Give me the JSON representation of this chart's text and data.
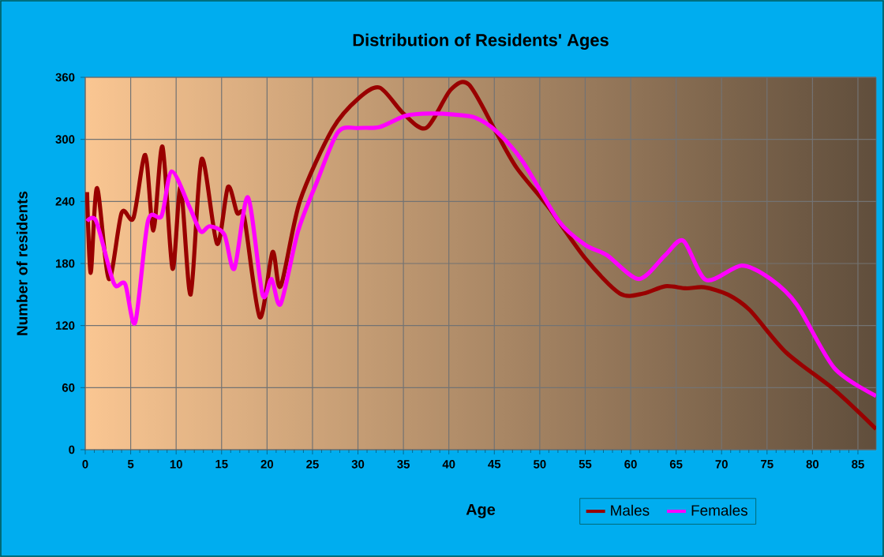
{
  "chart_data": {
    "type": "line",
    "title": "Distribution of Residents' Ages",
    "xlabel": "Age",
    "ylabel": "Number of residents",
    "xlim": [
      0,
      87
    ],
    "ylim": [
      0,
      360
    ],
    "xticks": [
      0,
      5,
      10,
      15,
      20,
      25,
      30,
      35,
      40,
      45,
      50,
      55,
      60,
      65,
      70,
      75,
      80,
      85
    ],
    "yticks": [
      0,
      60,
      120,
      180,
      240,
      300,
      360
    ],
    "grid": true,
    "legend": "bottom right",
    "series": [
      {
        "name": "Males",
        "color": "#990000",
        "x": [
          0.2,
          0.6,
          1.3,
          2.6,
          4,
          5.3,
          6.6,
          7.5,
          8.5,
          9.6,
          10.5,
          11.6,
          12.8,
          14.5,
          15.7,
          16.7,
          17.5,
          19.2,
          20.6,
          21.5,
          23.6,
          27.2,
          30.1,
          32.4,
          35,
          37.5,
          40.2,
          42.2,
          45.2,
          47.5,
          51,
          55,
          58.8,
          61.4,
          63.8,
          66.1,
          68.1,
          70.7,
          73.1,
          77.1,
          82.4,
          87
        ],
        "values": [
          249,
          171,
          253,
          165,
          229,
          224,
          285,
          212,
          293,
          175,
          254,
          150,
          281,
          199,
          254,
          229,
          224,
          128,
          191,
          158,
          240,
          310,
          340,
          350,
          325,
          311,
          348,
          353,
          307,
          272,
          234,
          185,
          151,
          151,
          158,
          156,
          157,
          150,
          135,
          94,
          58,
          20
        ]
      },
      {
        "name": "Females",
        "color": "#ff00ff",
        "x": [
          0.2,
          1.2,
          2.8,
          3.4,
          4.4,
          5.5,
          6.9,
          8.4,
          9.5,
          11.5,
          12.7,
          13.7,
          15.3,
          16.4,
          17.9,
          19.5,
          20.5,
          21.5,
          23.4,
          25.4,
          27.8,
          30.1,
          32.4,
          35.3,
          38.2,
          40.5,
          42.9,
          45.2,
          48.1,
          52.1,
          55,
          57.4,
          60.9,
          63.8,
          65.8,
          68.3,
          72.2,
          75.4,
          78.3,
          82.4,
          87
        ],
        "values": [
          221,
          221,
          170,
          158,
          160,
          123,
          221,
          226,
          269,
          234,
          211,
          216,
          208,
          175,
          244,
          150,
          165,
          141,
          211,
          257,
          307,
          311,
          312,
          323,
          325,
          324,
          321,
          308,
          279,
          221,
          198,
          188,
          165,
          188,
          202,
          164,
          178,
          165,
          140,
          79,
          52
        ]
      }
    ]
  }
}
